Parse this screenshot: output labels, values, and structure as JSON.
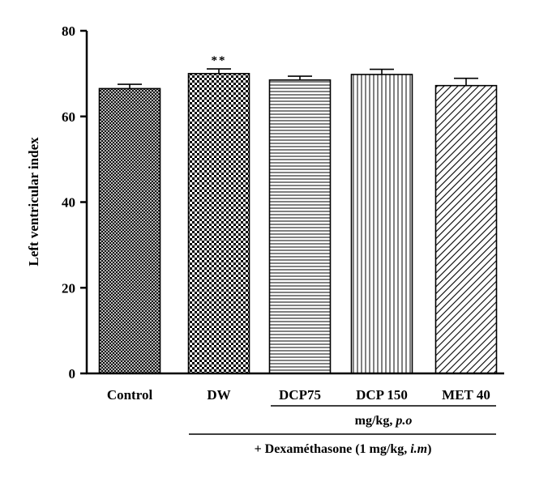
{
  "chart_data": {
    "type": "bar",
    "ylabel": "Left ventricular index",
    "ylim": [
      0,
      80
    ],
    "yticks": [
      "0",
      "20",
      "40",
      "60",
      "80"
    ],
    "categories": [
      "Control",
      "DW",
      "DCP75",
      "DCP 150",
      "MET 40"
    ],
    "values": [
      66.5,
      70.0,
      68.5,
      69.8,
      67.2
    ],
    "errors": [
      1.0,
      1.1,
      0.9,
      1.2,
      1.7
    ],
    "significance": [
      "",
      "**",
      "",
      "",
      ""
    ],
    "patterns": [
      "crosshatch",
      "checker",
      "horizontal",
      "vertical",
      "diagonal"
    ],
    "group_annotations": {
      "dose_label_pre": "mg/kg, ",
      "dose_label_italic": "p.o",
      "treatment_label_pre": "+ Dexaméthasone (1 mg/kg, ",
      "treatment_label_italic": "i.m",
      "treatment_label_post": ")"
    },
    "colors": {
      "axis": "#000000",
      "bar_fill": "#ffffff",
      "bar_pattern": "#000000"
    }
  }
}
